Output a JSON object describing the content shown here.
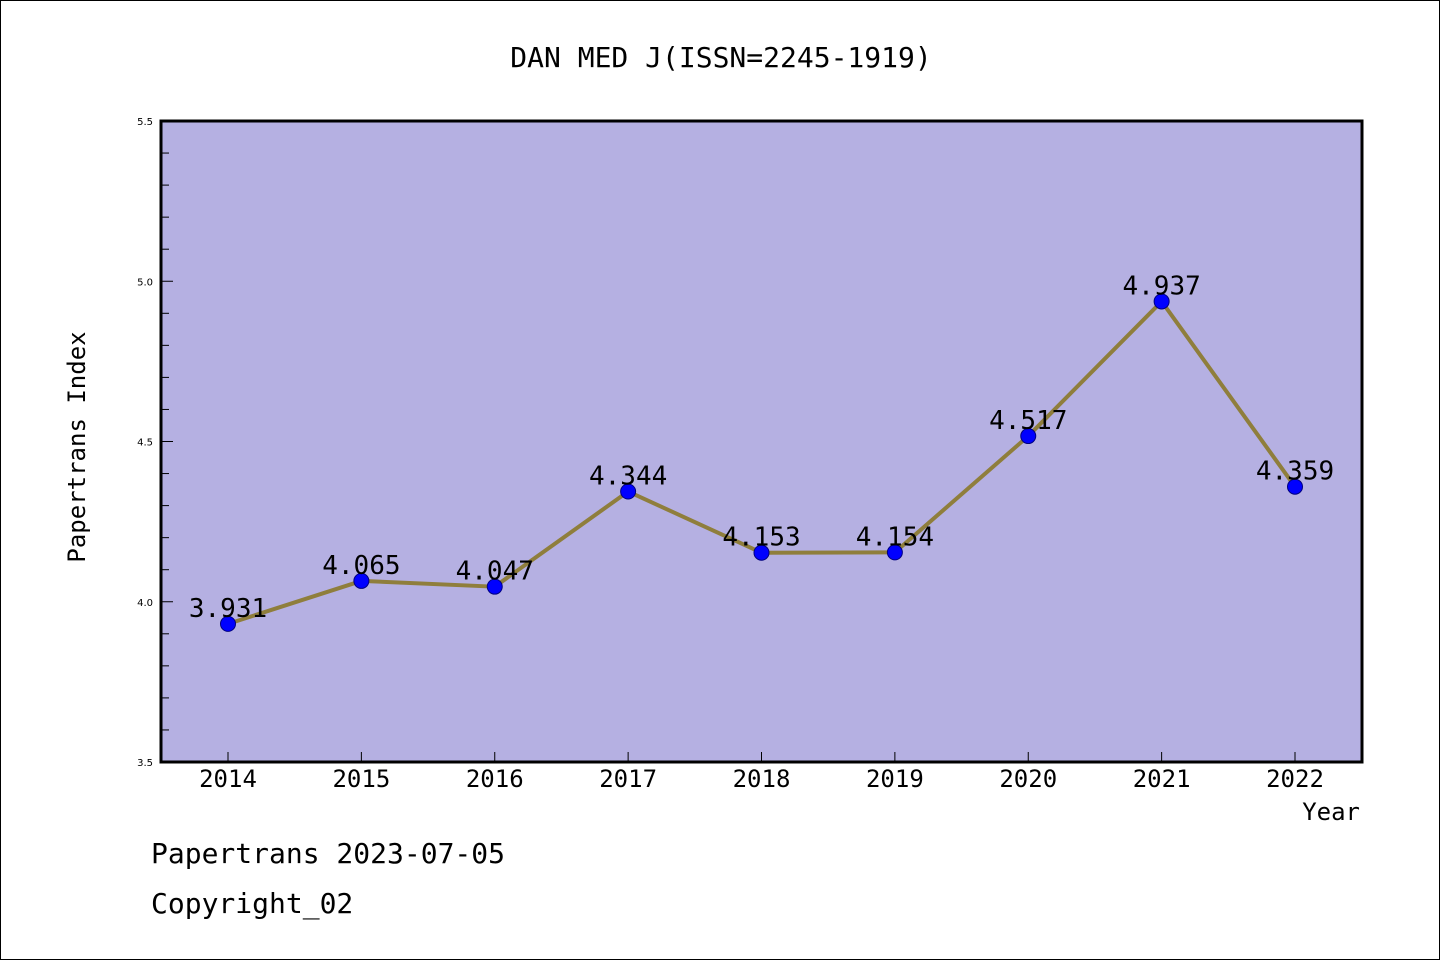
{
  "chart_data": {
    "type": "line",
    "title": "DAN MED J(ISSN=2245-1919)",
    "xlabel": "Year",
    "ylabel": "Papertrans Index",
    "categories": [
      "2014",
      "2015",
      "2016",
      "2017",
      "2018",
      "2019",
      "2020",
      "2021",
      "2022"
    ],
    "series": [
      {
        "values": [
          3.931,
          4.065,
          4.047,
          4.344,
          4.153,
          4.154,
          4.517,
          4.937,
          4.359
        ],
        "labels": [
          "3.931",
          "4.065",
          "4.047",
          "4.344",
          "4.153",
          "4.154",
          "4.517",
          "4.937",
          "4.359"
        ]
      }
    ],
    "ylim": [
      3.5,
      5.5
    ],
    "yticks": [
      "3.5",
      "4.0",
      "4.5",
      "5.0",
      "5.5"
    ],
    "grid": false,
    "legend": "none",
    "colors": {
      "plot_background": "#b5b0e2",
      "line": "#8f7e3c",
      "marker": "#0000ff",
      "marker_edge": "#000080"
    }
  },
  "footer": {
    "line1": "Papertrans 2023-07-05",
    "line2": "Copyright_02"
  }
}
